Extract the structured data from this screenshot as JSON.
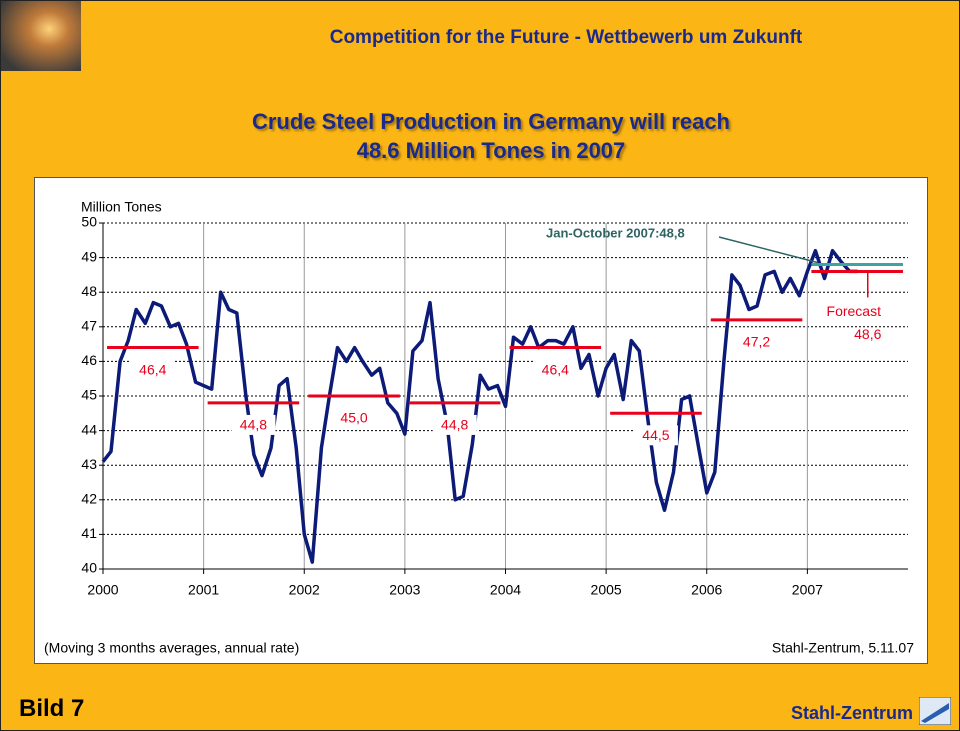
{
  "slide": {
    "header": "Competition for the Future - Wettbewerb um Zukunft",
    "title_lines": [
      "Crude Steel Production in Germany will reach",
      "48.6 Million Tones in 2007"
    ],
    "footer_left": "Bild 7",
    "footer_right": "Stahl-Zentrum"
  },
  "chart_data": {
    "type": "line",
    "y_label": "Million Tones",
    "note_left": "(Moving 3 months averages, annual rate)",
    "note_right": "Stahl-Zentrum, 5.11.07",
    "xlim": [
      2000,
      2008
    ],
    "xticks": [
      2000,
      2001,
      2002,
      2003,
      2004,
      2005,
      2006,
      2007
    ],
    "ylim": [
      40,
      50
    ],
    "yticks": [
      40,
      41,
      42,
      43,
      44,
      45,
      46,
      47,
      48,
      49,
      50
    ],
    "grid": true,
    "x": [
      2000,
      2000.08,
      2000.17,
      2000.25,
      2000.33,
      2000.42,
      2000.5,
      2000.58,
      2000.67,
      2000.75,
      2000.83,
      2000.92,
      2001,
      2001.08,
      2001.17,
      2001.25,
      2001.33,
      2001.42,
      2001.5,
      2001.58,
      2001.67,
      2001.75,
      2001.83,
      2001.92,
      2002,
      2002.08,
      2002.17,
      2002.25,
      2002.33,
      2002.42,
      2002.5,
      2002.58,
      2002.67,
      2002.75,
      2002.83,
      2002.92,
      2003,
      2003.08,
      2003.17,
      2003.25,
      2003.33,
      2003.42,
      2003.5,
      2003.58,
      2003.67,
      2003.75,
      2003.83,
      2003.92,
      2004,
      2004.08,
      2004.17,
      2004.25,
      2004.33,
      2004.42,
      2004.5,
      2004.58,
      2004.67,
      2004.75,
      2004.83,
      2004.92,
      2005,
      2005.08,
      2005.17,
      2005.25,
      2005.33,
      2005.42,
      2005.5,
      2005.58,
      2005.67,
      2005.75,
      2005.83,
      2005.92,
      2006,
      2006.08,
      2006.17,
      2006.25,
      2006.33,
      2006.42,
      2006.5,
      2006.58,
      2006.67,
      2006.75,
      2006.83,
      2006.92,
      2007,
      2007.08,
      2007.17,
      2007.25,
      2007.33,
      2007.42,
      2007.5
    ],
    "series": [
      {
        "color": "#0c1a78",
        "values": [
          43.1,
          43.4,
          46.0,
          46.6,
          47.5,
          47.1,
          47.7,
          47.6,
          47.0,
          47.1,
          46.5,
          45.4,
          45.3,
          45.2,
          48.0,
          47.5,
          47.4,
          45.0,
          43.3,
          42.7,
          43.5,
          45.3,
          45.5,
          43.5,
          41.0,
          40.2,
          43.5,
          45.0,
          46.4,
          46.0,
          46.4,
          46.0,
          45.6,
          45.8,
          44.8,
          44.5,
          43.9,
          46.3,
          46.6,
          47.7,
          45.5,
          44.2,
          42.0,
          42.1,
          43.6,
          45.6,
          45.2,
          45.3,
          44.7,
          46.7,
          46.5,
          47.0,
          46.4,
          46.6,
          46.6,
          46.5,
          47.0,
          45.8,
          46.2,
          45.0,
          45.8,
          46.2,
          44.9,
          46.6,
          46.3,
          44.2,
          42.5,
          41.7,
          42.8,
          44.9,
          45.0,
          43.5,
          42.2,
          42.8,
          46.0,
          48.5,
          48.2,
          47.5,
          47.6,
          48.5,
          48.6,
          48.0,
          48.4,
          47.9,
          48.6,
          49.2,
          48.4,
          49.2,
          48.9,
          48.6,
          48.6
        ]
      }
    ],
    "averages": {
      "color": "#e8001c",
      "years": [
        2000,
        2001,
        2002,
        2003,
        2004,
        2005,
        2006
      ],
      "values": [
        46.4,
        44.8,
        45.0,
        44.8,
        46.4,
        44.5,
        47.2
      ],
      "value_labels": [
        "46,4",
        "44,8",
        "45,0",
        "44,8",
        "46,4",
        "44,5",
        "47,2"
      ]
    },
    "forecast": {
      "label": "Forecast",
      "year": 2007,
      "value": 48.6,
      "value_label": "48,6",
      "color": "#e8001c"
    },
    "actual": {
      "label": "Jan-October 2007:48,8",
      "year": 2007,
      "value": 48.8,
      "color": "#3aa6a0"
    }
  }
}
